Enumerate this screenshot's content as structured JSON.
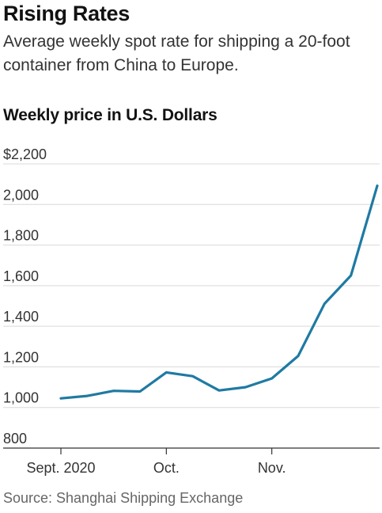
{
  "header": {
    "title": "Rising Rates",
    "subtitle": "Average weekly spot rate for shipping a 20-foot container from China to Europe.",
    "unit_label": "Weekly price in U.S. Dollars"
  },
  "footer": {
    "source": "Source: Shanghai Shipping Exchange"
  },
  "colors": {
    "line": "#1f7aa3",
    "grid": "#d9d9d9",
    "axis": "#333333"
  },
  "chart_data": {
    "type": "line",
    "title": "Rising Rates",
    "ylabel": "Weekly price in U.S. Dollars",
    "ylim": [
      800,
      2200
    ],
    "yticks": [
      800,
      1000,
      1200,
      1400,
      1600,
      1800,
      2000,
      2200
    ],
    "ytick_labels": [
      "800",
      "1,000",
      "1,200",
      "1,400",
      "1,600",
      "1,800",
      "2,000",
      "$2,200"
    ],
    "xticks": [
      0,
      4,
      8
    ],
    "xtick_labels": [
      "Sept. 2020",
      "Oct.",
      "Nov."
    ],
    "grid": true,
    "series": [
      {
        "x": [
          0,
          1,
          2,
          3,
          4,
          5,
          6,
          7,
          8,
          9,
          10,
          11,
          12
        ],
        "values": [
          1045,
          1057,
          1082,
          1079,
          1173,
          1154,
          1084,
          1100,
          1143,
          1254,
          1511,
          1650,
          2092
        ]
      }
    ]
  }
}
